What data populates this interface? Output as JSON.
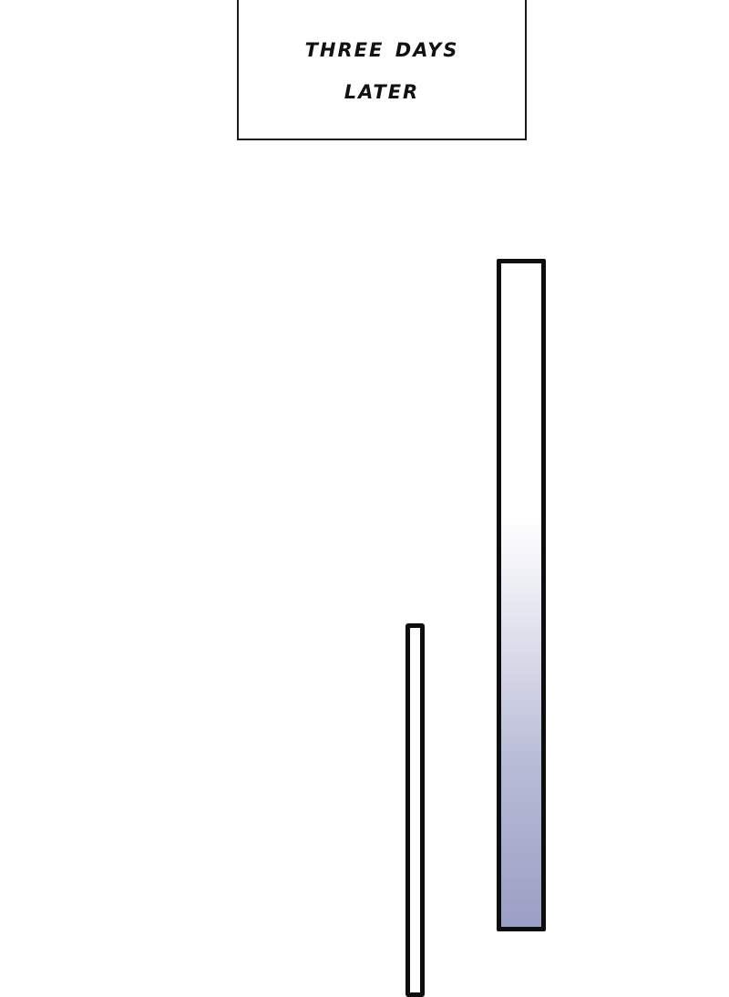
{
  "caption": {
    "line1": "Three days",
    "line2": "later"
  },
  "colors": {
    "ink": "#0d0d0d",
    "tall_bar_gradient_bottom": "#9a9fc4"
  }
}
